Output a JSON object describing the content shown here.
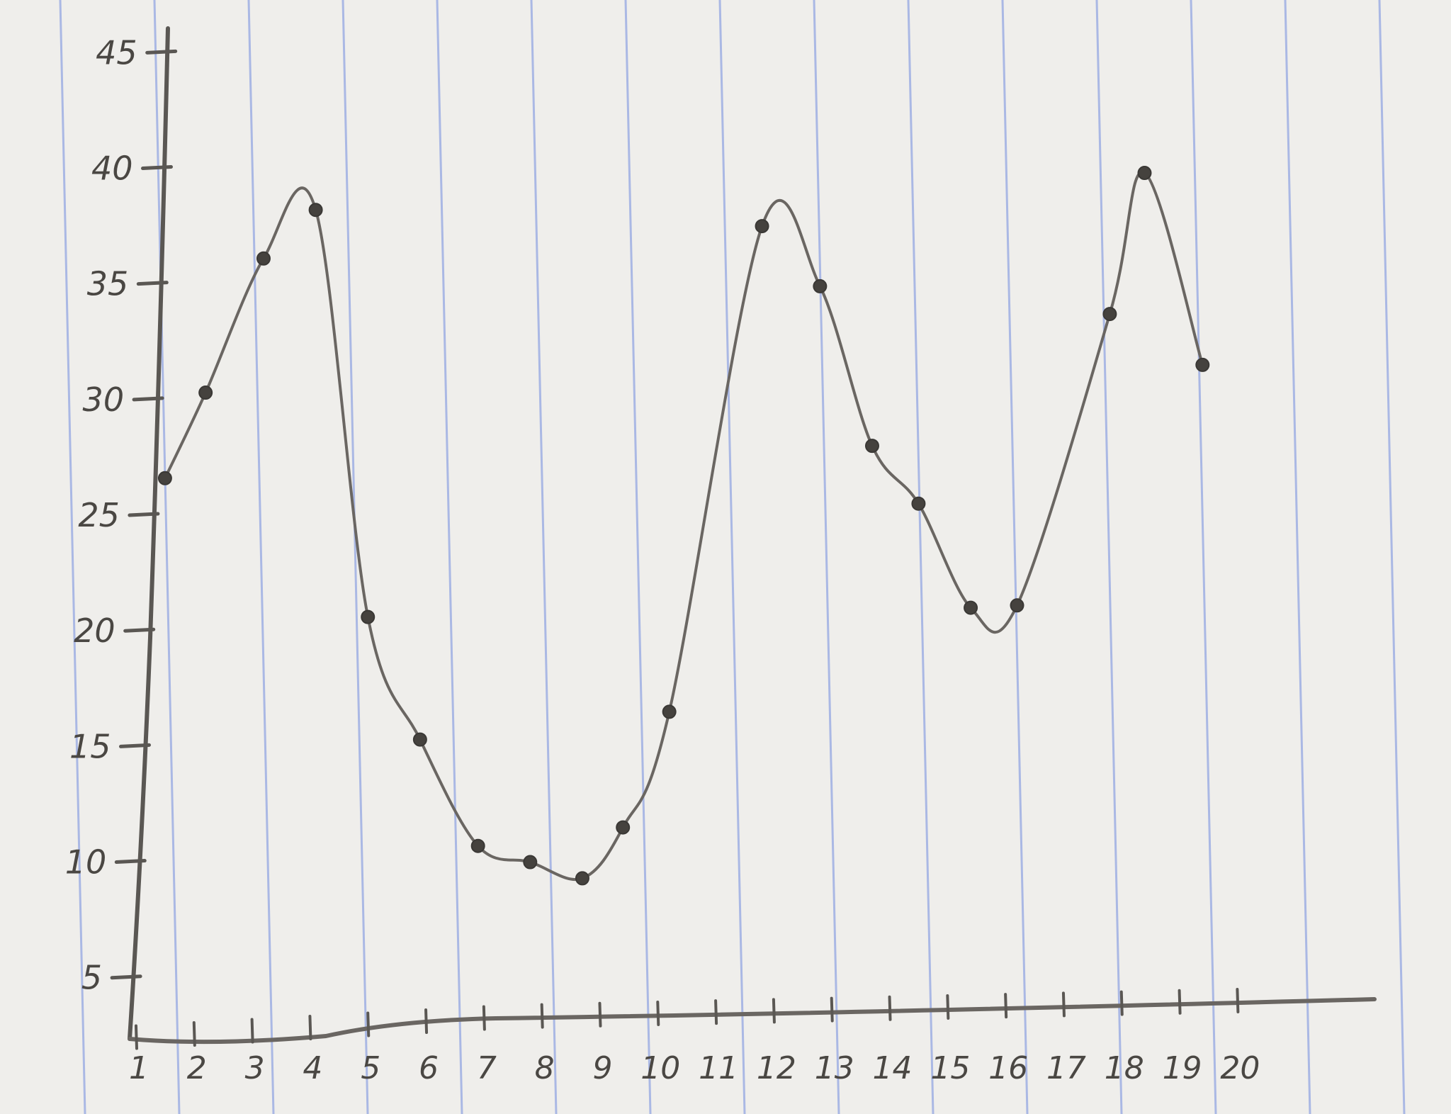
{
  "chart_data": {
    "type": "line",
    "title": "",
    "xlabel": "",
    "ylabel": "",
    "grid": false,
    "legend": "none",
    "x_ticks": [
      "1",
      "2",
      "3",
      "4",
      "5",
      "6",
      "7",
      "8",
      "9",
      "10",
      "11",
      "12",
      "13",
      "14",
      "15",
      "16",
      "17",
      "18",
      "19",
      "20"
    ],
    "y_ticks": [
      "5",
      "10",
      "15",
      "20",
      "25",
      "30",
      "35",
      "40",
      "45"
    ],
    "xlim": [
      1,
      22
    ],
    "ylim": [
      3,
      45.5
    ],
    "series": [
      {
        "points": [
          {
            "x": 1.5,
            "y": 26.6
          },
          {
            "x": 2.2,
            "y": 30.3
          },
          {
            "x": 3.2,
            "y": 36.1
          },
          {
            "x": 4.1,
            "y": 38.2
          },
          {
            "x": 5.0,
            "y": 20.6
          },
          {
            "x": 5.9,
            "y": 15.3
          },
          {
            "x": 6.9,
            "y": 10.7
          },
          {
            "x": 7.8,
            "y": 10.0
          },
          {
            "x": 8.7,
            "y": 9.3
          },
          {
            "x": 9.4,
            "y": 11.5
          },
          {
            "x": 10.2,
            "y": 16.5
          },
          {
            "x": 11.8,
            "y": 37.5
          },
          {
            "x": 12.8,
            "y": 34.9
          },
          {
            "x": 13.7,
            "y": 28.0
          },
          {
            "x": 14.5,
            "y": 25.5
          },
          {
            "x": 15.4,
            "y": 21.0
          },
          {
            "x": 16.2,
            "y": 21.1
          },
          {
            "x": 17.8,
            "y": 33.7
          },
          {
            "x": 18.4,
            "y": 39.8
          },
          {
            "x": 19.4,
            "y": 31.5
          }
        ]
      }
    ],
    "colors": {
      "paper": "#efeeeb",
      "rule_line": "#aab8e4",
      "pencil": "#5a5753",
      "dot": "#45423e"
    }
  }
}
